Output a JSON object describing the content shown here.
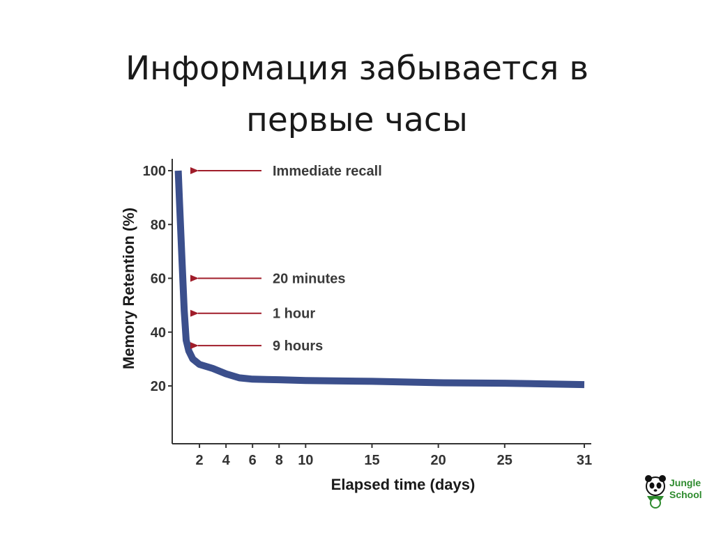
{
  "slide": {
    "title_line1": "Информация забывается в",
    "title_line2": "первые часы"
  },
  "logo": {
    "line1": "Jungle",
    "line2": "School",
    "icon": "panda-icon"
  },
  "colors": {
    "curve": "#3b4f8c",
    "arrow": "#a01d2a",
    "axis": "#333333"
  },
  "chart_data": {
    "type": "line",
    "title": "",
    "xlabel": "Elapsed time (days)",
    "ylabel": "Memory Retention (%)",
    "xlim": [
      0,
      31
    ],
    "ylim": [
      0,
      100
    ],
    "x_ticks": [
      2,
      4,
      6,
      8,
      10,
      15,
      20,
      25,
      31
    ],
    "y_ticks": [
      20,
      40,
      60,
      80,
      100
    ],
    "grid": false,
    "series": [
      {
        "x": [
          0.4,
          0.5,
          0.7,
          0.85,
          1.0,
          1.2,
          1.5,
          2.0,
          3.0,
          4.0,
          5.0,
          6.0,
          8.0,
          10.0,
          15.0,
          20.0,
          25.0,
          31.0
        ],
        "y": [
          100,
          88,
          65,
          48,
          37,
          33,
          30,
          28,
          26.5,
          24.5,
          23,
          22.5,
          22.3,
          22,
          21.7,
          21.2,
          21,
          20.5
        ]
      }
    ],
    "annotations": [
      {
        "label": "Immediate recall",
        "y": 100
      },
      {
        "label": "20 minutes",
        "y": 60
      },
      {
        "label": "1 hour",
        "y": 47
      },
      {
        "label": "9 hours",
        "y": 35
      }
    ]
  }
}
